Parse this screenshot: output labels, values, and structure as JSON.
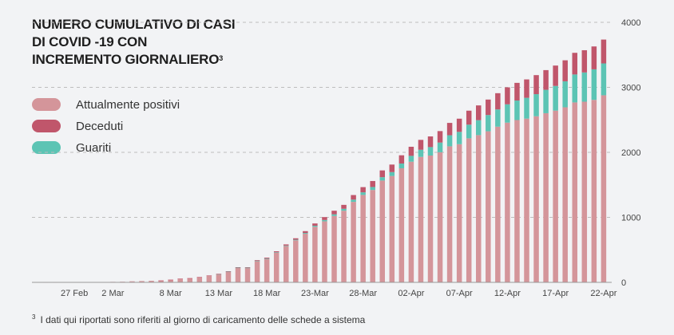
{
  "chart_data": {
    "type": "bar",
    "stacked": true,
    "title": "NUMERO CUMULATIVO DI CASI DI COVID -19  CON INCREMENTO GIORNALIERO",
    "title_lines": [
      "NUMERO CUMULATIVO DI CASI",
      "DI COVID -19  CON",
      "INCREMENTO GIORNALIERO"
    ],
    "title_footnote_mark": "3",
    "xlabel": "",
    "ylabel": "",
    "ylim": [
      0,
      4000
    ],
    "yticks": [
      0,
      1000,
      2000,
      3000,
      4000
    ],
    "y_axis_side": "right",
    "grid": "horizontal dashed",
    "legend_placement": "left",
    "categories": [
      "24 Feb",
      "25 Feb",
      "26 Feb",
      "27 Feb",
      "28 Feb",
      "29 Feb",
      "1 Mar",
      "2 Mar",
      "3 Mar",
      "4 Mar",
      "5 Mar",
      "6 Mar",
      "7 Mar",
      "8 Mar",
      "9 Mar",
      "10 Mar",
      "11 Mar",
      "12 Mar",
      "13 Mar",
      "14 Mar",
      "15 Mar",
      "16 Mar",
      "17 Mar",
      "18 Mar",
      "19 Mar",
      "20 Mar",
      "21 Mar",
      "22 Mar",
      "23 Mar",
      "24 Mar",
      "25 Mar",
      "26 Mar",
      "27 Mar",
      "28 Mar",
      "29 Mar",
      "30 Mar",
      "31 Mar",
      "1 Apr",
      "2 Apr",
      "3 Apr",
      "4 Apr",
      "5 Apr",
      "6 Apr",
      "7 Apr",
      "8 Apr",
      "9 Apr",
      "10 Apr",
      "11 Apr",
      "12 Apr",
      "13 Apr",
      "14 Apr",
      "15 Apr",
      "16 Apr",
      "17 Apr",
      "18 Apr",
      "19 Apr",
      "20 Apr",
      "21 Apr",
      "22 Apr"
    ],
    "xticks": [
      {
        "label": "27 Feb",
        "category": "27 Feb"
      },
      {
        "label": "2 Mar",
        "category": "2 Mar"
      },
      {
        "label": "8 Mar",
        "category": "8 Mar"
      },
      {
        "label": "13 Mar",
        "category": "13 Mar"
      },
      {
        "label": "18 Mar",
        "category": "18 Mar"
      },
      {
        "label": "23-Mar",
        "category": "23 Mar"
      },
      {
        "label": "28-Mar",
        "category": "28 Mar"
      },
      {
        "label": "02-Apr",
        "category": "2 Apr"
      },
      {
        "label": "07-Apr",
        "category": "7 Apr"
      },
      {
        "label": "12-Apr",
        "category": "12 Apr"
      },
      {
        "label": "17-Apr",
        "category": "17 Apr"
      },
      {
        "label": "22-Apr",
        "category": "22 Apr"
      }
    ],
    "series": [
      {
        "name": "Attualmente positivi",
        "color": "#d4959a",
        "values": [
          1,
          1,
          2,
          2,
          3,
          4,
          6,
          8,
          10,
          16,
          20,
          24,
          28,
          40,
          55,
          63,
          79,
          103,
          126,
          165,
          225,
          224,
          331,
          364,
          458,
          559,
          647,
          748,
          855,
          939,
          1022,
          1102,
          1238,
          1345,
          1421,
          1566,
          1636,
          1755,
          1856,
          1930,
          1951,
          2001,
          2093,
          2125,
          2216,
          2265,
          2324,
          2395,
          2457,
          2497,
          2519,
          2555,
          2602,
          2642,
          2693,
          2768,
          2779,
          2807,
          2878
        ]
      },
      {
        "name": "Guariti",
        "color": "#5cc4b4",
        "values": [
          0,
          0,
          0,
          0,
          0,
          0,
          0,
          0,
          0,
          0,
          0,
          0,
          0,
          0,
          0,
          0,
          0,
          0,
          1,
          1,
          2,
          2,
          3,
          4,
          5,
          7,
          9,
          12,
          16,
          20,
          25,
          30,
          35,
          40,
          46,
          52,
          60,
          73,
          90,
          110,
          130,
          150,
          170,
          190,
          210,
          230,
          250,
          265,
          282,
          300,
          320,
          340,
          360,
          380,
          400,
          430,
          450,
          470,
          490
        ]
      },
      {
        "name": "Deceduti",
        "color": "#c0566b",
        "values": [
          0,
          0,
          0,
          0,
          0,
          0,
          0,
          0,
          0,
          0,
          0,
          0,
          1,
          1,
          2,
          2,
          3,
          3,
          4,
          5,
          6,
          7,
          9,
          12,
          15,
          18,
          22,
          28,
          35,
          45,
          55,
          60,
          70,
          80,
          92,
          104,
          116,
          127,
          140,
          152,
          164,
          176,
          190,
          203,
          215,
          227,
          238,
          250,
          261,
          272,
          283,
          293,
          303,
          313,
          323,
          333,
          342,
          352,
          367
        ]
      }
    ],
    "legend": [
      "Attualmente positivi",
      "Deceduti",
      "Guariti"
    ],
    "legend_colors": [
      "#d4959a",
      "#c0566b",
      "#5cc4b4"
    ]
  },
  "footnote": {
    "mark": "3",
    "text": "I dati qui riportati sono riferiti al giorno di caricamento delle schede a sistema"
  }
}
